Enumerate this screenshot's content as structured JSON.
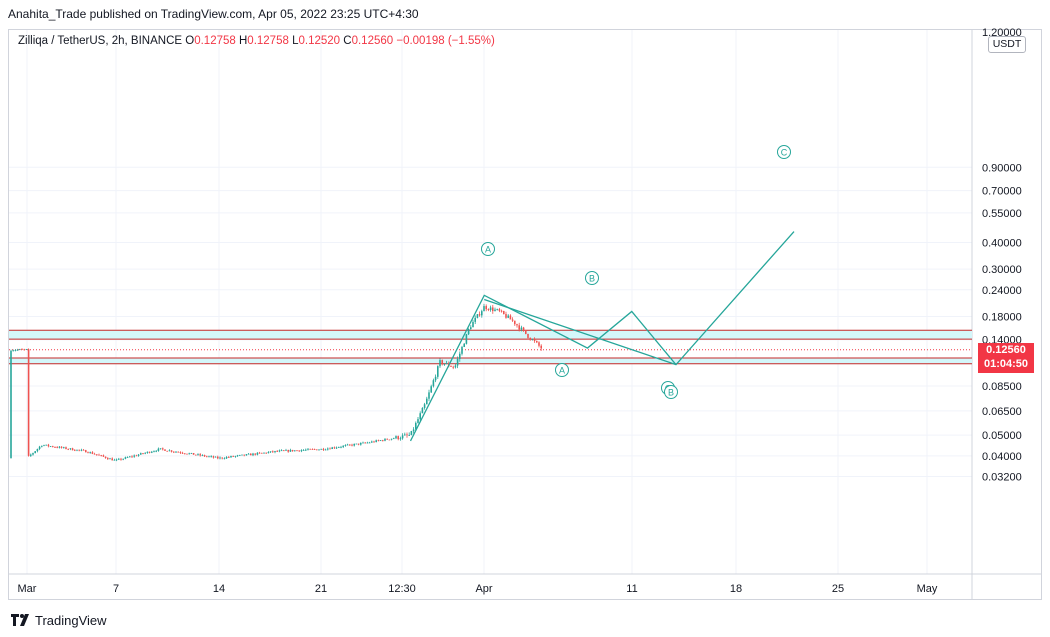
{
  "header": {
    "text": "Anahita_Trade published on TradingView.com, Apr 05, 2022 23:25 UTC+4:30"
  },
  "legend": {
    "symbol": "Zilliqa / TetherUS, 2h, BINANCE",
    "open_label": "O",
    "open": "0.12758",
    "high_label": "H",
    "high": "0.12758",
    "low_label": "L",
    "low": "0.12520",
    "close_label": "C",
    "close": "0.12560",
    "change": "−0.00198 (−1.55%)"
  },
  "price_axis": {
    "currency": "USDT",
    "top_partial": "1.20000",
    "ticks": [
      "0.90000",
      "0.70000",
      "0.55000",
      "0.40000",
      "0.30000",
      "0.24000",
      "0.18000",
      "0.14000",
      "0.08500",
      "0.06500",
      "0.05000",
      "0.04000",
      "0.03200"
    ],
    "tick_values": [
      0.9,
      0.7,
      0.55,
      0.4,
      0.3,
      0.24,
      0.18,
      0.14,
      0.085,
      0.065,
      0.05,
      0.04,
      0.032
    ],
    "current_price": "0.12560",
    "countdown": "01:04:50"
  },
  "time_axis": {
    "ticks": [
      "Mar",
      "7",
      "14",
      "21",
      "12:30",
      "Apr",
      "11",
      "18",
      "25",
      "May"
    ]
  },
  "colors": {
    "up": "#26a69a",
    "down": "#ef5350",
    "zone_fill": "#d4f7fa",
    "zone_border": "#c62828",
    "wave": "#26a69a",
    "badge": "#f23645"
  },
  "zones": [
    {
      "top": 0.155,
      "bottom": 0.141
    },
    {
      "top": 0.115,
      "bottom": 0.108
    }
  ],
  "wave_labels": [
    "A",
    "B",
    "C",
    "A",
    "B",
    "C"
  ],
  "chart_data": {
    "type": "candlestick",
    "symbol": "ZILUSDT",
    "timeframe": "2h",
    "scale": "log",
    "ylim": [
      0.028,
      1.2
    ],
    "price_path": [
      {
        "t": "Mar 1",
        "p": 0.039
      },
      {
        "t": "Mar 2",
        "p": 0.045
      },
      {
        "t": "Mar 5",
        "p": 0.042
      },
      {
        "t": "Mar 7",
        "p": 0.038
      },
      {
        "t": "Mar 10",
        "p": 0.043
      },
      {
        "t": "Mar 14",
        "p": 0.039
      },
      {
        "t": "Mar 18",
        "p": 0.042
      },
      {
        "t": "Mar 21",
        "p": 0.043
      },
      {
        "t": "Mar 24",
        "p": 0.046
      },
      {
        "t": "Mar 27",
        "p": 0.05
      },
      {
        "t": "Mar 28",
        "p": 0.07
      },
      {
        "t": "Mar 29",
        "p": 0.11
      },
      {
        "t": "Mar 30",
        "p": 0.104
      },
      {
        "t": "Mar 31",
        "p": 0.16
      },
      {
        "t": "Apr 1",
        "p": 0.2
      },
      {
        "t": "Apr 2",
        "p": 0.19
      },
      {
        "t": "Apr 3",
        "p": 0.17
      },
      {
        "t": "Apr 4",
        "p": 0.145
      },
      {
        "t": "Apr 5",
        "p": 0.1256
      }
    ],
    "projection": [
      {
        "label": "",
        "t": "Mar 27",
        "p": 0.047
      },
      {
        "label": "A",
        "t": "Apr 1",
        "p": 0.226
      },
      {
        "label": "",
        "t": "Apr 8",
        "p": 0.128
      },
      {
        "label": "B",
        "t": "Apr 11",
        "p": 0.19
      },
      {
        "label": "C",
        "t": "Apr 14",
        "p": 0.107
      },
      {
        "label": "",
        "t": "Apr 1",
        "p": 0.216
      },
      {
        "label": "C",
        "t": "Apr 14",
        "p": 0.107
      },
      {
        "label": "C",
        "t": "Apr 22",
        "p": 0.45
      }
    ]
  }
}
